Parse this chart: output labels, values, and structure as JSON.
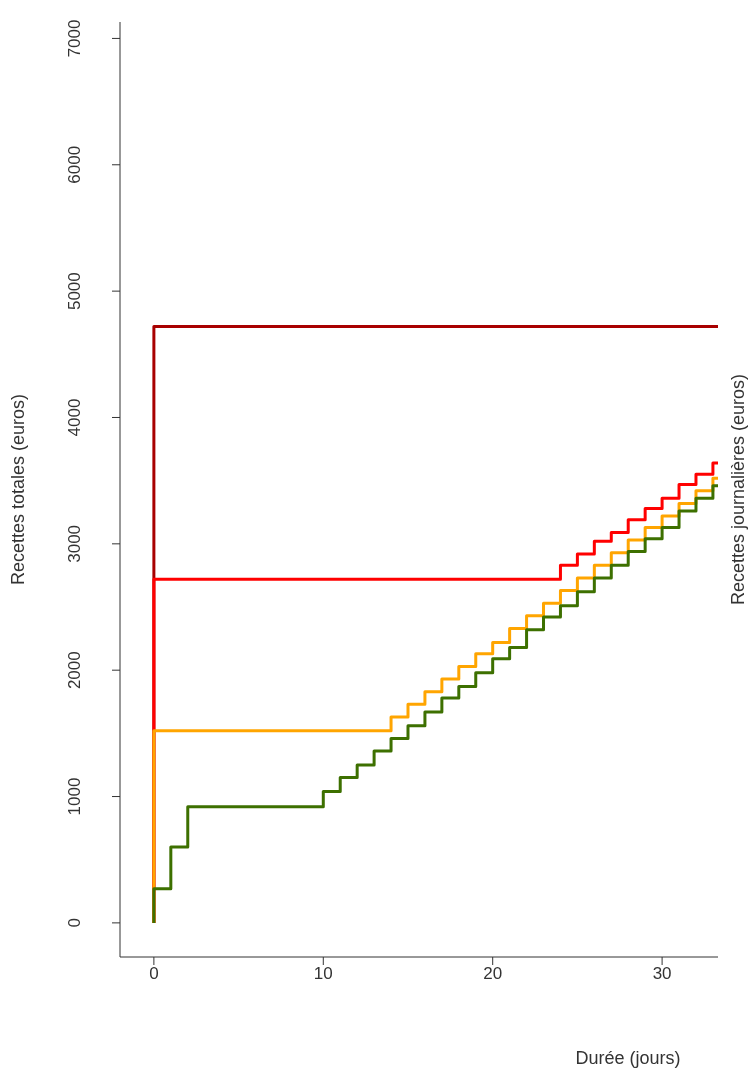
{
  "chart_data": {
    "type": "step",
    "xlabel": "Durée (jours)",
    "ylabel": "Recettes totales (euros)",
    "y2label": "Recettes journalières (euros)",
    "xlim": [
      -2,
      33.3
    ],
    "ylim": [
      -270,
      7130
    ],
    "xticks": [
      0,
      10,
      20,
      30
    ],
    "yticks": [
      0,
      1000,
      2000,
      3000,
      4000,
      5000,
      6000,
      7000
    ],
    "grid": false,
    "series": [
      {
        "color": "#a80000",
        "x": [
          0,
          0,
          33.3
        ],
        "values": [
          0,
          4720,
          4720
        ]
      },
      {
        "color": "#ff0000",
        "x": [
          0,
          0,
          24,
          25,
          26,
          27,
          28,
          29,
          30,
          31,
          32,
          33,
          33.3
        ],
        "values": [
          0,
          2720,
          2830,
          2920,
          3020,
          3090,
          3190,
          3280,
          3360,
          3470,
          3550,
          3640,
          3640
        ]
      },
      {
        "color": "#ffa500",
        "x": [
          0,
          0,
          14,
          15,
          16,
          17,
          18,
          19,
          20,
          21,
          22,
          23,
          24,
          25,
          26,
          27,
          28,
          29,
          30,
          31,
          32,
          33,
          33.3
        ],
        "values": [
          0,
          1520,
          1630,
          1730,
          1830,
          1930,
          2030,
          2130,
          2220,
          2330,
          2430,
          2530,
          2630,
          2730,
          2830,
          2930,
          3030,
          3130,
          3220,
          3320,
          3420,
          3520,
          3520
        ]
      },
      {
        "color": "#3d7000",
        "x": [
          0,
          0,
          1,
          2,
          10,
          11,
          12,
          13,
          14,
          15,
          16,
          17,
          18,
          19,
          20,
          21,
          22,
          23,
          24,
          25,
          26,
          27,
          28,
          29,
          30,
          31,
          32,
          33,
          33.3
        ],
        "values": [
          0,
          270,
          600,
          920,
          1040,
          1150,
          1250,
          1360,
          1460,
          1560,
          1670,
          1780,
          1870,
          1980,
          2090,
          2180,
          2320,
          2420,
          2510,
          2620,
          2730,
          2830,
          2940,
          3040,
          3130,
          3260,
          3360,
          3460,
          3460
        ]
      }
    ]
  }
}
